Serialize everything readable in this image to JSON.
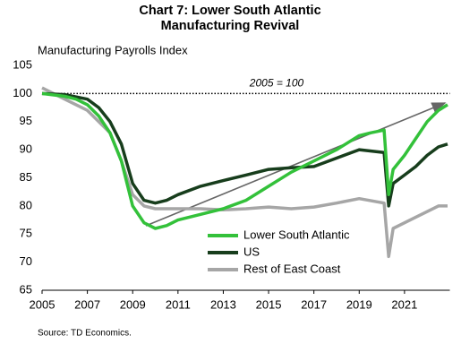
{
  "chart_data": {
    "type": "line",
    "title": "Chart 7: Lower South Atlantic Manufacturing Revival",
    "y_axis_label": "Manufacturing Payrolls Index",
    "source": "Source: TD Economics.",
    "reference_line": 100,
    "reference_label": "2005 = 100",
    "xlim": [
      2005,
      2023
    ],
    "xticks": [
      2005,
      2007,
      2009,
      2011,
      2013,
      2015,
      2017,
      2019,
      2021
    ],
    "ylim": [
      65,
      105
    ],
    "yticks": [
      65,
      70,
      75,
      80,
      85,
      90,
      95,
      100,
      105
    ],
    "grid": false,
    "series": [
      {
        "name": "Lower South Atlantic",
        "color": "#33c13a",
        "x": [
          2005,
          2006,
          2006.5,
          2007,
          2007.5,
          2008,
          2008.5,
          2009,
          2009.5,
          2010,
          2010.5,
          2011,
          2012,
          2013,
          2014,
          2015,
          2016,
          2017,
          2018,
          2019,
          2019.5,
          2020.1,
          2020.3,
          2020.5,
          2021,
          2021.5,
          2022,
          2022.5,
          2022.9
        ],
        "values": [
          100,
          99.5,
          99,
          98,
          96,
          93,
          88,
          80,
          77,
          76,
          76.5,
          77.5,
          78.5,
          79.5,
          81,
          83.5,
          86,
          88,
          90,
          92.5,
          93,
          93.5,
          82,
          86.5,
          89,
          92,
          95,
          97,
          98
        ]
      },
      {
        "name": "US",
        "color": "#173d1c",
        "x": [
          2005,
          2006,
          2007,
          2007.5,
          2008,
          2008.5,
          2009,
          2009.5,
          2010,
          2010.5,
          2011,
          2012,
          2013,
          2014,
          2015,
          2016,
          2017,
          2018,
          2019,
          2020.1,
          2020.3,
          2020.5,
          2021,
          2021.5,
          2022,
          2022.5,
          2022.9
        ],
        "values": [
          100,
          99.8,
          99,
          97.5,
          95,
          91,
          84,
          81,
          80.5,
          81,
          82,
          83.5,
          84.5,
          85.5,
          86.5,
          86.8,
          87,
          88.5,
          90,
          89.5,
          80,
          84,
          85.5,
          87,
          89,
          90.5,
          91
        ]
      },
      {
        "name": "Rest of East Coast",
        "color": "#a6a6a6",
        "x": [
          2005,
          2006,
          2007,
          2008,
          2008.5,
          2009,
          2009.5,
          2010,
          2011,
          2012,
          2013,
          2014,
          2015,
          2016,
          2017,
          2018,
          2019,
          2020.1,
          2020.3,
          2020.5,
          2021,
          2021.5,
          2022,
          2022.5,
          2022.9
        ],
        "values": [
          101,
          99,
          97,
          93,
          88,
          82,
          80,
          79.5,
          79.5,
          79.5,
          79.3,
          79.5,
          79.8,
          79.5,
          79.8,
          80.5,
          81.3,
          80.5,
          71,
          76,
          77,
          78,
          79,
          80,
          80
        ]
      }
    ]
  }
}
